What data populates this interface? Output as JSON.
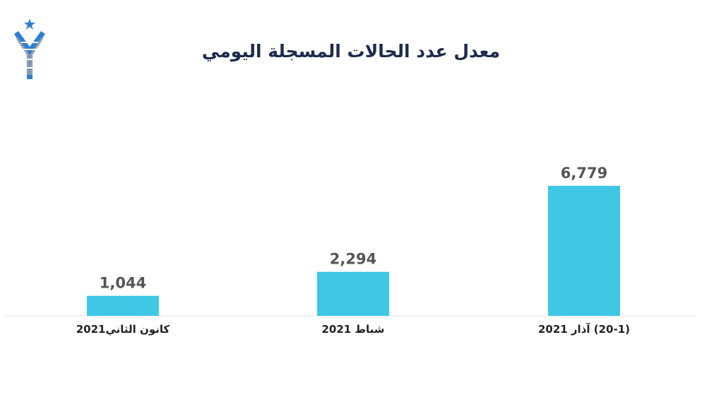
{
  "title": "معدل عدد الحالات المسجلة اليومي",
  "colors": {
    "bar": "#3ec8e6",
    "title": "#1b2a4e",
    "logo_blue": "#2f7fd1",
    "logo_grey": "#9aa3b0"
  },
  "chart_data": {
    "type": "bar",
    "title": "معدل عدد الحالات المسجلة اليومي",
    "categories": [
      "كانون الثاني2021",
      "شباط 2021",
      "(20-1) آذار 2021"
    ],
    "values": [
      1044,
      2294,
      6779
    ],
    "value_labels": [
      "1,044",
      "2,294",
      "6,779"
    ],
    "xlabel": "",
    "ylabel": "",
    "ylim": [
      0,
      6779
    ],
    "grid": false,
    "legend": "none"
  }
}
